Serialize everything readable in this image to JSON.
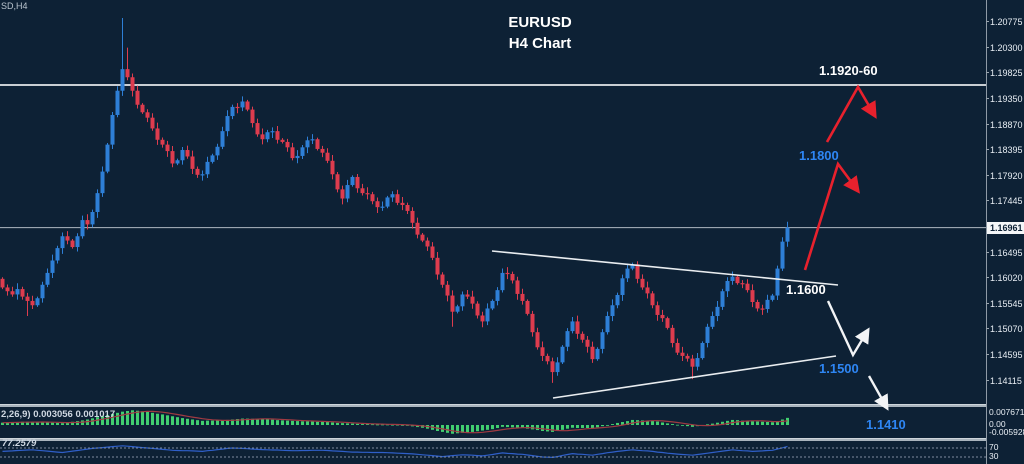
{
  "window": {
    "symbol_label": "SD,H4"
  },
  "title": {
    "line1": "EURUSD",
    "line2": "H4 Chart"
  },
  "annotations": {
    "resistance_zone": "1.1920-60",
    "level_1800": "1.1800",
    "level_1600": "1.1600",
    "level_1500": "1.1500",
    "level_1410": "1.1410"
  },
  "axis": {
    "current_price_label": "1.16961",
    "macd_labels": [
      "0.007671",
      "0.00",
      "-0.005928"
    ],
    "osc_labels": [
      "70",
      "30"
    ]
  },
  "indicator_labels": {
    "macd": "2,26,9) 0.003056 0.001017",
    "oscillator": "77.2579"
  },
  "colors": {
    "background": "#0d2135",
    "bull": "#2e7fd6",
    "bear": "#dd3c4e",
    "annotation_red": "#e8212d",
    "annotation_white": "#f2f4f6",
    "annotation_blue": "#2e86f4",
    "macd_bar": "#41cf70",
    "macd_signal": "#a03a42",
    "osc_line": "#2f5fc9",
    "resistance_line": "#c9ced3",
    "current_price_line": "#aeb8c2"
  },
  "chart_data": {
    "type": "candlestick",
    "symbol": "EURUSD",
    "timeframe": "H4",
    "title": "EURUSD H4 Chart",
    "current_price": 1.16961,
    "resistance_line_price": 1.196,
    "resistance_zone": [
      1.192,
      1.196
    ],
    "key_levels": [
      1.192,
      1.18,
      1.16,
      1.15,
      1.141
    ],
    "price_axis": [
      1.20775,
      1.203,
      1.19825,
      1.1935,
      1.1887,
      1.18395,
      1.1792,
      1.17445,
      1.16495,
      1.1602,
      1.15545,
      1.1507,
      1.14595,
      1.14115
    ],
    "candles": {
      "closes": [
        1.1585,
        1.1578,
        1.1572,
        1.1582,
        1.1568,
        1.156,
        1.1552,
        1.1565,
        1.159,
        1.1612,
        1.1635,
        1.1658,
        1.168,
        1.1672,
        1.166,
        1.168,
        1.171,
        1.1702,
        1.1725,
        1.176,
        1.18,
        1.185,
        1.1905,
        1.195,
        1.199,
        1.1975,
        1.195,
        1.1924,
        1.191,
        1.19,
        1.188,
        1.1859,
        1.185,
        1.1838,
        1.1815,
        1.1821,
        1.184,
        1.1828,
        1.1805,
        1.1794,
        1.1795,
        1.1818,
        1.183,
        1.1846,
        1.1875,
        1.1903,
        1.192,
        1.1919,
        1.193,
        1.1915,
        1.189,
        1.1869,
        1.186,
        1.1873,
        1.1875,
        1.1859,
        1.1855,
        1.1845,
        1.1825,
        1.1829,
        1.1845,
        1.1858,
        1.186,
        1.1842,
        1.1835,
        1.182,
        1.1795,
        1.1767,
        1.175,
        1.1775,
        1.179,
        1.1769,
        1.176,
        1.1758,
        1.1745,
        1.1734,
        1.1735,
        1.1752,
        1.1758,
        1.1742,
        1.1738,
        1.1727,
        1.1705,
        1.1683,
        1.1672,
        1.1661,
        1.164,
        1.1609,
        1.159,
        1.157,
        1.154,
        1.155,
        1.1572,
        1.1568,
        1.1555,
        1.1533,
        1.1522,
        1.1546,
        1.156,
        1.158,
        1.1612,
        1.161,
        1.1598,
        1.1573,
        1.156,
        1.1536,
        1.1502,
        1.1474,
        1.1458,
        1.1448,
        1.1428,
        1.1446,
        1.1475,
        1.1504,
        1.1522,
        1.1499,
        1.1488,
        1.1475,
        1.1452,
        1.1471,
        1.1502,
        1.1532,
        1.1552,
        1.1571,
        1.1602,
        1.162,
        1.1628,
        1.1601,
        1.1585,
        1.1574,
        1.1552,
        1.1534,
        1.1528,
        1.151,
        1.1482,
        1.1464,
        1.1458,
        1.1453,
        1.1438,
        1.1454,
        1.1482,
        1.1512,
        1.1532,
        1.1549,
        1.1578,
        1.1597,
        1.1605,
        1.1593,
        1.1592,
        1.158,
        1.1558,
        1.1546,
        1.1545,
        1.1562,
        1.157,
        1.162,
        1.167,
        1.16961
      ],
      "wick_overrides": {
        "5": {
          "low": 1.1532
        },
        "24": {
          "high": 1.2085
        },
        "25": {
          "high": 1.203
        },
        "90": {
          "low": 1.1512
        },
        "110": {
          "low": 1.1408
        },
        "138": {
          "low": 1.1415
        }
      }
    },
    "macd": {
      "current_main": 0.003056,
      "current_signal": 0.001017,
      "axis_max": 0.007671,
      "axis_min": -0.005928,
      "values_x10000": [
        10,
        11,
        12,
        13,
        14,
        14,
        13,
        12,
        12,
        11,
        10,
        9,
        8,
        11,
        14,
        17,
        20,
        24,
        29,
        34,
        38,
        43,
        48,
        53,
        58,
        61,
        64,
        62,
        60,
        57,
        53,
        49,
        46,
        42,
        38,
        34,
        30,
        27,
        24,
        21,
        18,
        19,
        19,
        20,
        20,
        22,
        24,
        26,
        28,
        28,
        27,
        26,
        26,
        25,
        23,
        21,
        20,
        19,
        18,
        17,
        16,
        16,
        15,
        14,
        14,
        13,
        11,
        9,
        8,
        7,
        6,
        5,
        4,
        4,
        3,
        2,
        2,
        2,
        1,
        1,
        0,
        -3,
        -6,
        -9,
        -12,
        -16,
        -21,
        -26,
        -30,
        -34,
        -38,
        -36,
        -34,
        -32,
        -30,
        -27,
        -24,
        -21,
        -18,
        -13,
        -8,
        -9,
        -10,
        -11,
        -12,
        -16,
        -19,
        -22,
        -26,
        -28,
        -30,
        -26,
        -21,
        -16,
        -12,
        -13,
        -13,
        -13,
        -14,
        -10,
        -5,
        0,
        4,
        9,
        13,
        17,
        22,
        21,
        20,
        19,
        18,
        15,
        11,
        7,
        4,
        1,
        -2,
        -5,
        -8,
        -5,
        -1,
        3,
        6,
        10,
        14,
        18,
        22,
        21,
        19,
        18,
        16,
        15,
        14,
        13,
        12,
        16,
        24,
        31
      ]
    },
    "oscillator": {
      "current": 77.2579,
      "levels": [
        70,
        30
      ],
      "values": [
        55,
        56,
        57,
        59,
        60,
        61,
        62,
        60,
        58,
        56,
        54,
        52,
        50,
        53,
        56,
        59,
        62,
        65,
        68,
        70,
        72,
        74,
        76,
        78,
        80,
        78,
        76,
        74,
        72,
        70,
        68,
        66,
        64,
        62,
        60,
        59,
        58,
        58,
        57,
        56,
        55,
        58,
        60,
        63,
        65,
        68,
        70,
        69,
        68,
        67,
        65,
        64,
        63,
        62,
        61,
        61,
        60,
        59,
        58,
        58,
        59,
        59,
        60,
        60,
        60,
        59,
        57,
        56,
        55,
        53,
        52,
        52,
        51,
        51,
        50,
        50,
        50,
        49,
        48,
        47,
        46,
        45,
        44,
        42,
        40,
        38,
        36,
        34,
        32,
        34,
        36,
        38,
        40,
        39,
        38,
        36,
        35,
        38,
        41,
        45,
        48,
        46,
        45,
        43,
        42,
        39,
        36,
        33,
        30,
        29,
        28,
        32,
        37,
        41,
        45,
        43,
        42,
        40,
        38,
        42,
        45,
        49,
        52,
        55,
        57,
        60,
        62,
        60,
        58,
        57,
        55,
        52,
        50,
        47,
        45,
        43,
        41,
        40,
        38,
        41,
        44,
        47,
        50,
        53,
        56,
        59,
        62,
        60,
        58,
        57,
        55,
        56,
        57,
        59,
        60,
        65,
        71,
        77
      ]
    }
  }
}
